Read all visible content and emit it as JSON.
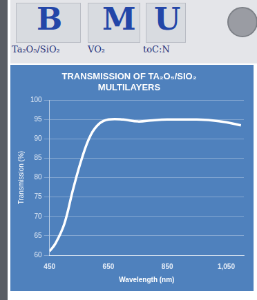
{
  "chart_data": {
    "type": "line",
    "title": "TRANSMISSION OF TA₂O₅/SIO₂ MULTILAYERS",
    "x_label": "Wavelength (nm)",
    "y_label": "Transmission (%)",
    "x": [
      450,
      470,
      500,
      530,
      560,
      590,
      620,
      650,
      700,
      750,
      800,
      850,
      900,
      950,
      1000,
      1050,
      1100
    ],
    "values": [
      61,
      63,
      68,
      77,
      85,
      91,
      94,
      95,
      95,
      94.5,
      94.8,
      95,
      95,
      95,
      94.8,
      94.3,
      93.5
    ],
    "color": "#ffffff",
    "xlim": [
      450,
      1110
    ],
    "xticks": [
      450,
      650,
      850,
      1050
    ],
    "ylim": [
      60,
      100
    ],
    "yticks": [
      60,
      65,
      70,
      75,
      80,
      85,
      90,
      95,
      100
    ],
    "grid": true
  },
  "photo": {
    "letters": [
      "B",
      "M",
      "U"
    ],
    "captions": [
      "Ta₂O₅/SiO₂",
      "VO₂",
      "toC:N"
    ]
  }
}
